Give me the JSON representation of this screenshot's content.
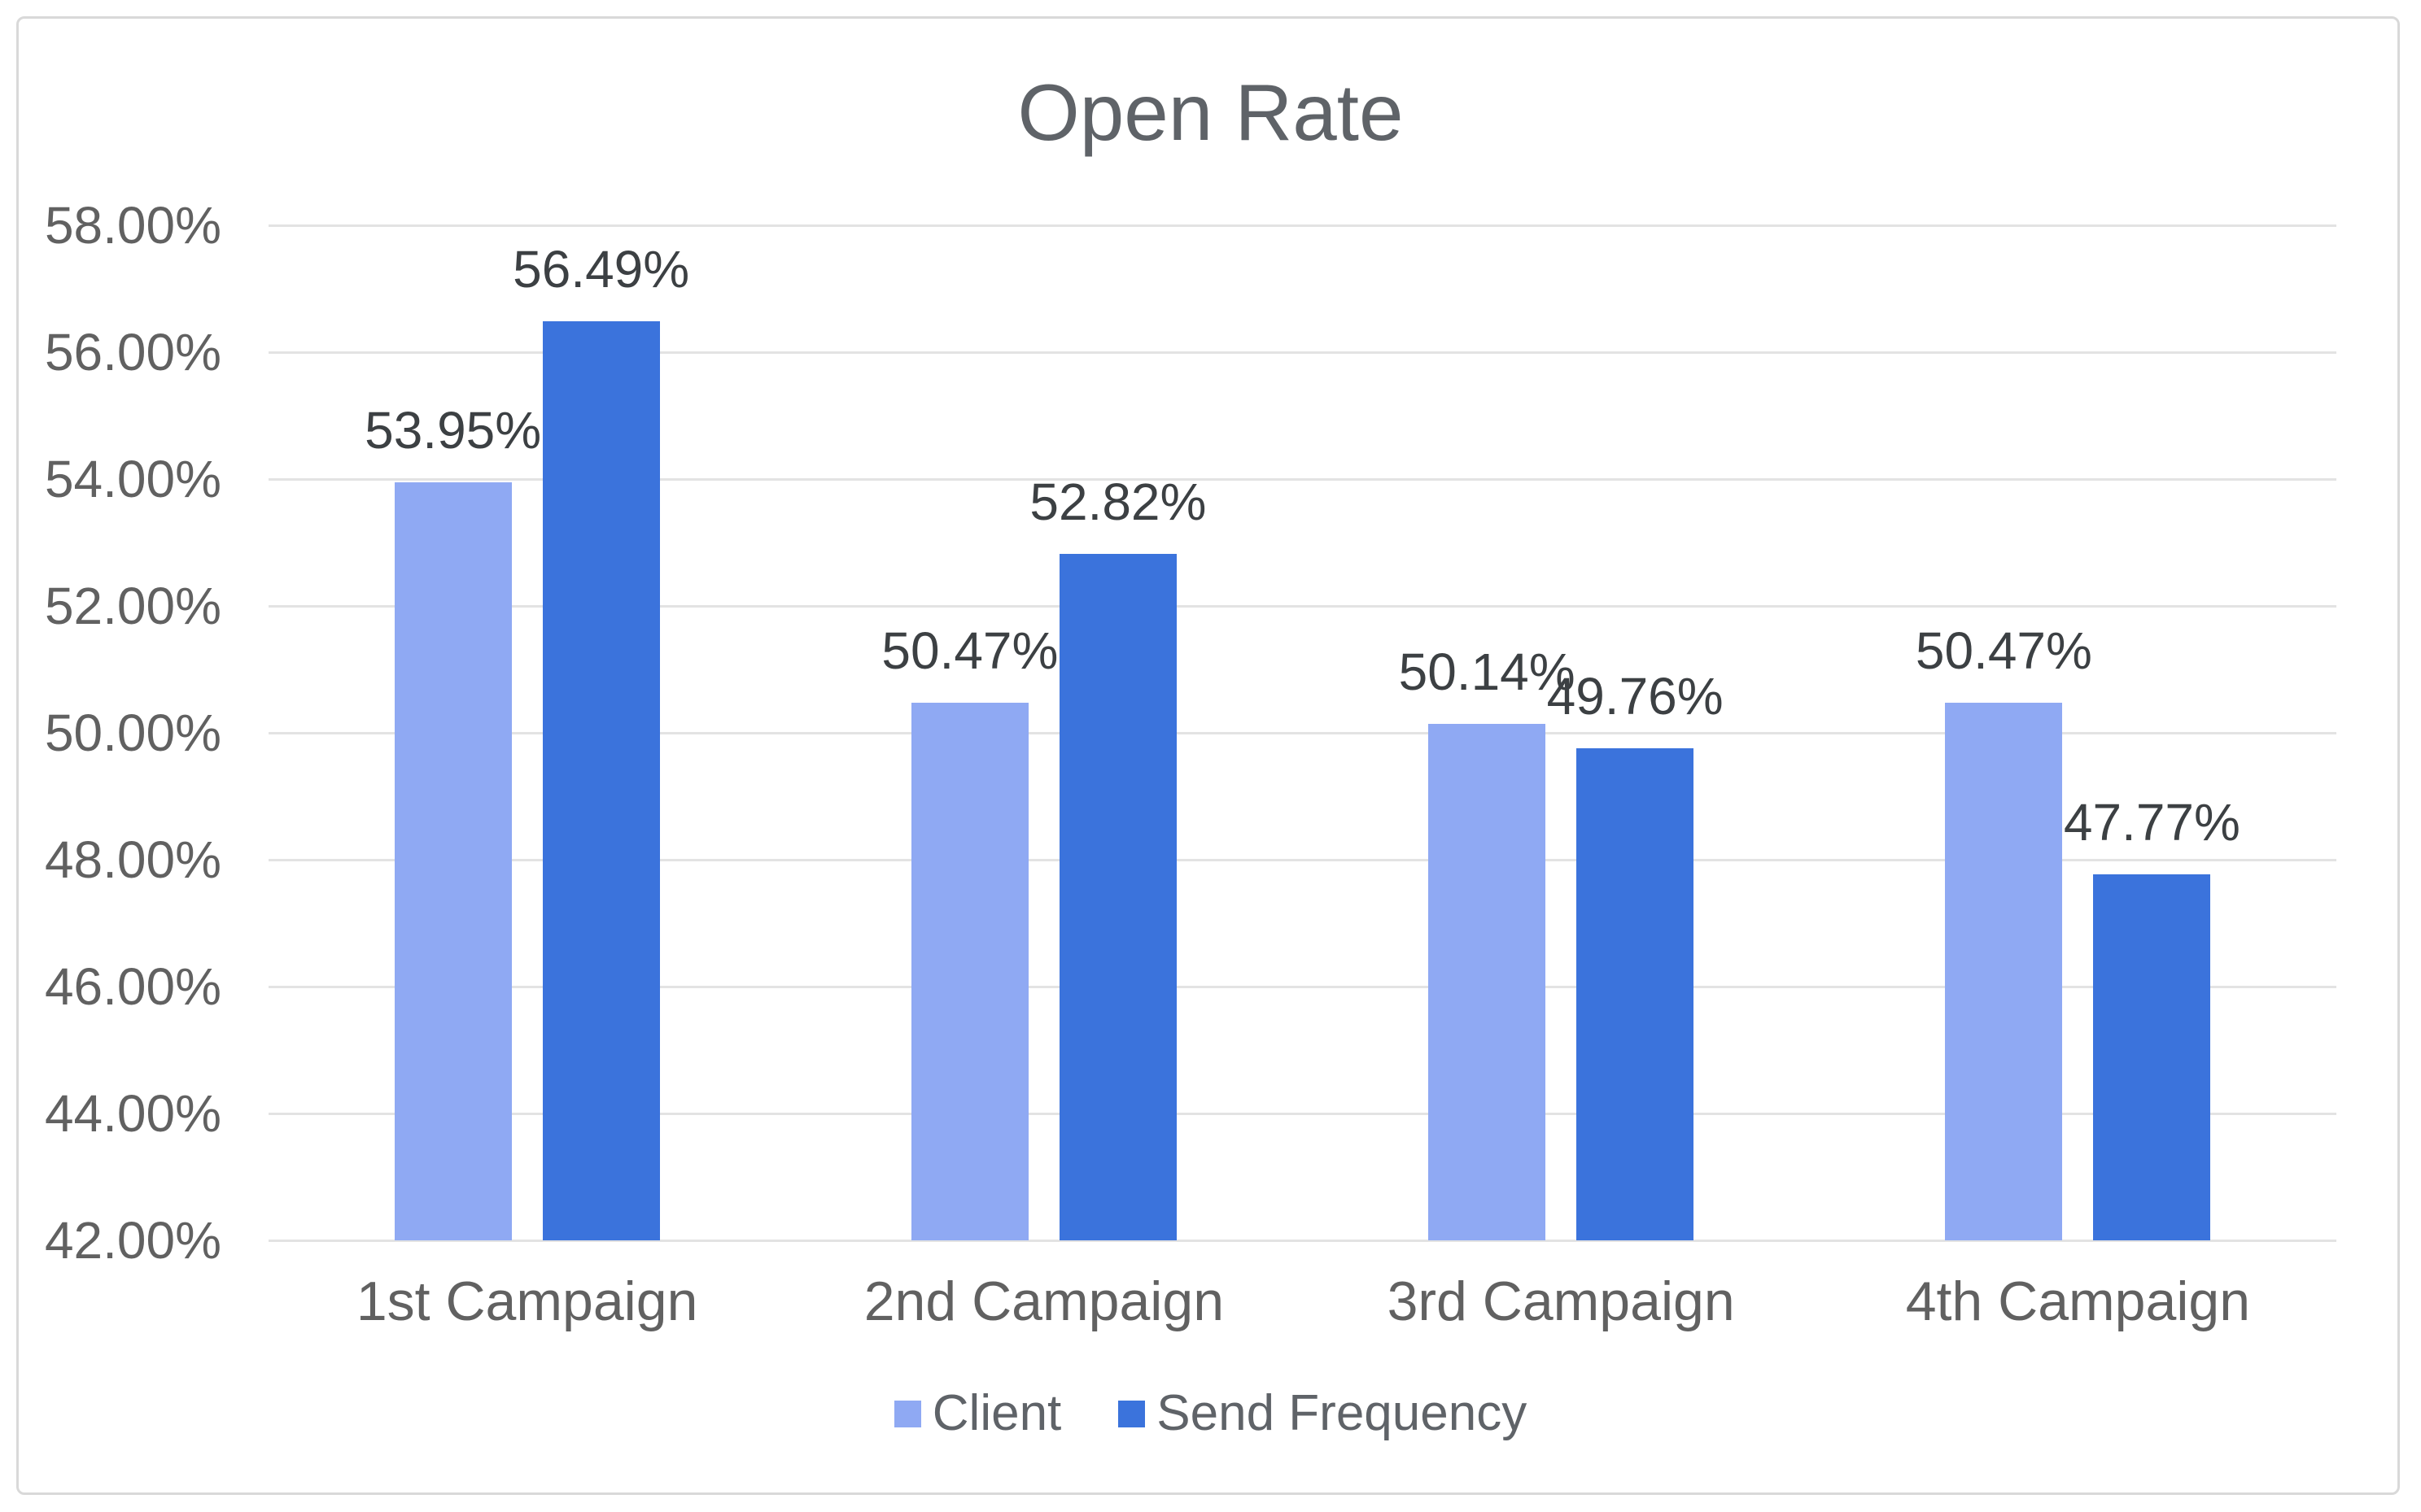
{
  "chart_data": {
    "type": "bar",
    "title": "Open Rate",
    "categories": [
      "1st Campaign",
      "2nd Campaign",
      "3rd Campaign",
      "4th Campaign"
    ],
    "series": [
      {
        "name": "Client",
        "color": "#8FA9F3",
        "values": [
          53.95,
          50.47,
          50.14,
          50.47
        ],
        "labels": [
          "53.95%",
          "50.47%",
          "50.14%",
          "50.47%"
        ]
      },
      {
        "name": "Send Frequency",
        "color": "#3B73DC",
        "values": [
          56.49,
          52.82,
          49.76,
          47.77
        ],
        "labels": [
          "56.49%",
          "52.82%",
          "49.76%",
          "47.77%"
        ]
      }
    ],
    "y_axis": {
      "min": 42,
      "max": 58,
      "step": 2,
      "tick_labels": [
        "42.00%",
        "44.00%",
        "46.00%",
        "48.00%",
        "50.00%",
        "52.00%",
        "54.00%",
        "56.00%",
        "58.00%"
      ]
    },
    "grid": true,
    "legend_position": "bottom",
    "colors": {
      "gridline": "#E3E3E3",
      "title_text": "#5F6368",
      "axis_text": "#616161",
      "data_label_text": "#3C4043",
      "chart_border": "#D9D9D9"
    }
  }
}
